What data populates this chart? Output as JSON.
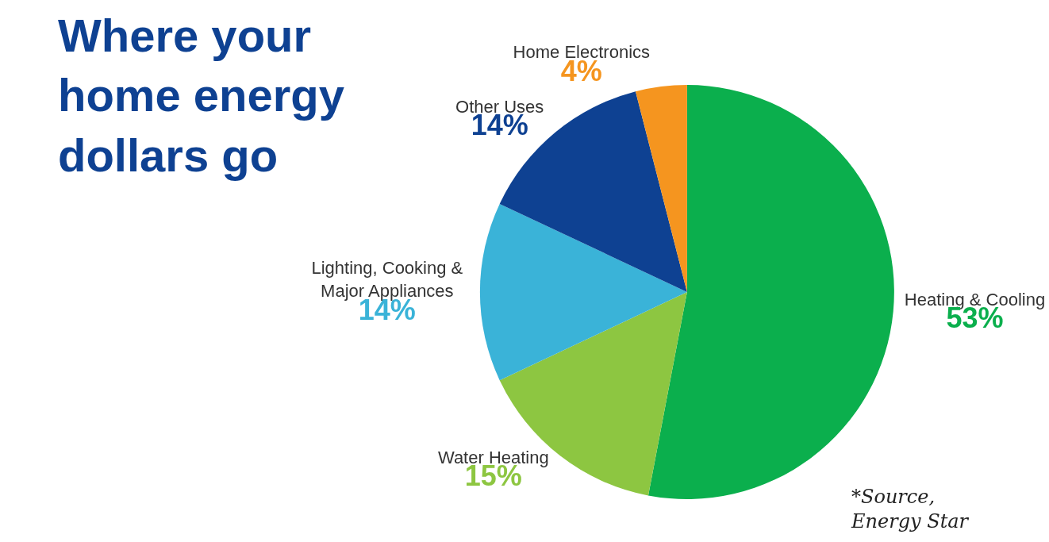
{
  "chart_data": {
    "type": "pie",
    "title": "Where your\nhome energy\ndollars go",
    "categories": [
      "Heating & Cooling",
      "Water Heating",
      "Lighting, Cooking &\nMajor Appliances",
      "Other Uses",
      "Home Electronics"
    ],
    "values": [
      53,
      15,
      14,
      14,
      4
    ],
    "colors": [
      "#0baf4d",
      "#8dc641",
      "#3ab3d8",
      "#0e4192",
      "#f5951f"
    ],
    "value_labels": [
      "53%",
      "15%",
      "14%",
      "14%",
      "4%"
    ],
    "annotations": [
      "*Source,\nEnergy Star"
    ],
    "legend": false
  }
}
